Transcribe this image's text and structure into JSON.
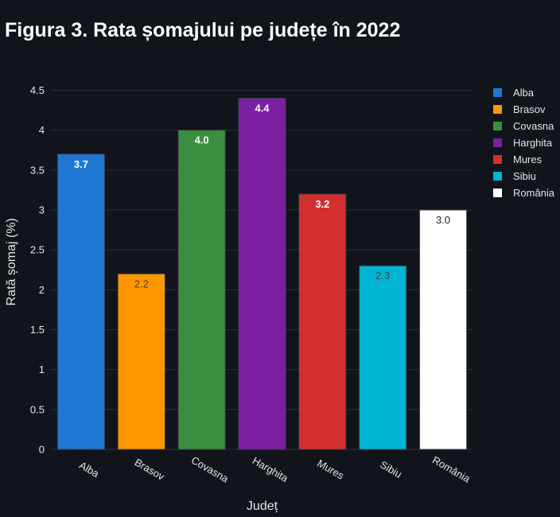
{
  "title": "Figura 3. Rata șomajului pe județe în 2022",
  "chart_data": {
    "type": "bar",
    "categories": [
      "Alba",
      "Brasov",
      "Covasna",
      "Harghita",
      "Mures",
      "Sibiu",
      "România"
    ],
    "values": [
      3.7,
      2.2,
      4.0,
      4.4,
      3.2,
      2.3,
      3.0
    ],
    "value_labels": [
      "3.7",
      "2.2",
      "4.0",
      "4.4",
      "3.2",
      "2.3",
      "3.0"
    ],
    "colors": [
      "#1f77d4",
      "#ff9800",
      "#3a8f3e",
      "#7b1fa2",
      "#d32f2f",
      "#00b4d3",
      "#ffffff"
    ],
    "label_colors": [
      "#ffffff",
      "#444444",
      "#ffffff",
      "#ffffff",
      "#ffffff",
      "#444444",
      "#222222"
    ],
    "xlabel": "Județ",
    "ylabel": "Rată șomaj (%)",
    "ylim": [
      0,
      4.5
    ],
    "yticks": [
      0,
      0.5,
      1,
      1.5,
      2,
      2.5,
      3,
      3.5,
      4,
      4.5
    ],
    "ytick_labels": [
      "0",
      "0.5",
      "1",
      "1.5",
      "2",
      "2.5",
      "3",
      "3.5",
      "4",
      "4.5"
    ],
    "grid": true,
    "legend_position": "right",
    "legend": [
      "Alba",
      "Brasov",
      "Covasna",
      "Harghita",
      "Mures",
      "Sibiu",
      "România"
    ]
  }
}
